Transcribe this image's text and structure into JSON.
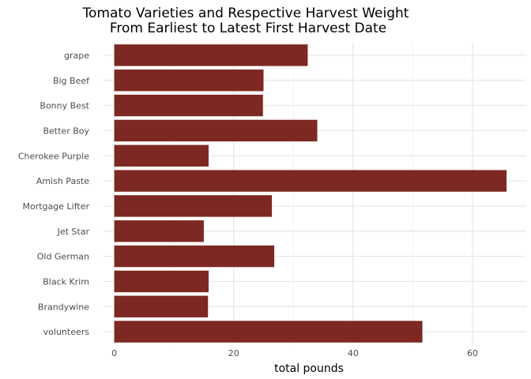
{
  "chart_data": {
    "type": "bar",
    "orientation": "horizontal",
    "title_line1": "Tomato Varieties and Respective Harvest Weight",
    "title_line2": "From Earliest to Latest First Harvest Date",
    "xlabel": "total pounds",
    "ylabel": "",
    "categories": [
      "grape",
      "Big Beef",
      "Bonny Best",
      "Better Boy",
      "Cherokee Purple",
      "Amish Paste",
      "Mortgage Lifter",
      "Jet Star",
      "Old German",
      "Black Krim",
      "Brandywine",
      "volunteers"
    ],
    "values": [
      32.4,
      25.0,
      24.9,
      34.0,
      15.8,
      65.7,
      26.4,
      15.0,
      26.8,
      15.8,
      15.7,
      51.6
    ],
    "xlim": [
      -1.8,
      69
    ],
    "xticks": [
      0,
      20,
      40,
      60
    ],
    "bar_color": "#7d2822",
    "grid": true,
    "legend": "none"
  }
}
